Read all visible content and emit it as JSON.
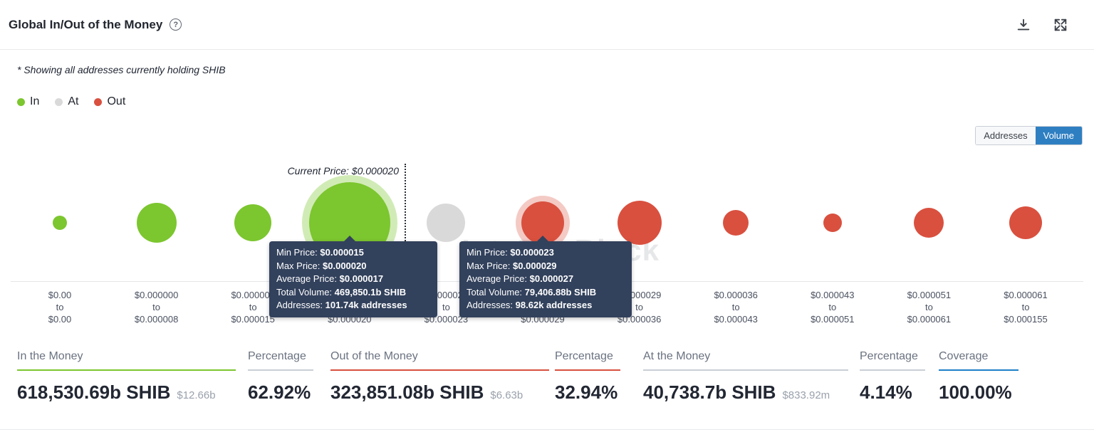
{
  "header": {
    "title": "Global In/Out of the Money",
    "help_icon": "?"
  },
  "note": "* Showing all addresses currently holding SHIB",
  "legend": {
    "items": [
      {
        "label": "In",
        "color": "#7cc62f"
      },
      {
        "label": "At",
        "color": "#d9d9d9"
      },
      {
        "label": "Out",
        "color": "#d9503f"
      }
    ]
  },
  "view_toggle": {
    "options": [
      {
        "label": "Addresses",
        "selected": false
      },
      {
        "label": "Volume",
        "selected": true
      }
    ],
    "selected_color": "#2e7fc2"
  },
  "current_price": {
    "label": "Current Price: $0.000020"
  },
  "watermark": "IntoTheBlock",
  "chart_data": {
    "type": "bubble",
    "current_price": "$0.000020",
    "separator_word": "to",
    "colors": {
      "in": "#7cc62f",
      "at": "#d9d9d9",
      "out": "#d9503f"
    },
    "buckets": [
      {
        "from": "$0.00",
        "to": "$0.00",
        "status": "in",
        "radius": 10
      },
      {
        "from": "$0.000000",
        "to": "$0.000008",
        "status": "in",
        "radius": 28
      },
      {
        "from": "$0.000008",
        "to": "$0.000015",
        "status": "in",
        "radius": 26
      },
      {
        "from": "$0.000015",
        "to": "$0.000020",
        "status": "in",
        "radius": 57,
        "highlighted": true
      },
      {
        "from": "$0.000020",
        "to": "$0.000023",
        "status": "at",
        "radius": 27
      },
      {
        "from": "$0.000023",
        "to": "$0.000029",
        "status": "out",
        "radius": 30,
        "highlighted": true
      },
      {
        "from": "$0.000029",
        "to": "$0.000036",
        "status": "out",
        "radius": 31
      },
      {
        "from": "$0.000036",
        "to": "$0.000043",
        "status": "out",
        "radius": 18
      },
      {
        "from": "$0.000043",
        "to": "$0.000051",
        "status": "out",
        "radius": 13
      },
      {
        "from": "$0.000051",
        "to": "$0.000061",
        "status": "out",
        "radius": 21
      },
      {
        "from": "$0.000061",
        "to": "$0.000155",
        "status": "out",
        "radius": 23
      }
    ]
  },
  "tooltips": [
    {
      "bucket_index": 3,
      "rows": [
        {
          "label": "Min Price:",
          "value": "$0.000015"
        },
        {
          "label": "Max Price:",
          "value": "$0.000020"
        },
        {
          "label": "Average Price:",
          "value": "$0.000017"
        },
        {
          "label": "Total Volume:",
          "value": "469,850.1b SHIB"
        },
        {
          "label": "Addresses:",
          "value": "101.74k addresses"
        }
      ]
    },
    {
      "bucket_index": 5,
      "rows": [
        {
          "label": "Min Price:",
          "value": "$0.000023"
        },
        {
          "label": "Max Price:",
          "value": "$0.000029"
        },
        {
          "label": "Average Price:",
          "value": "$0.000027"
        },
        {
          "label": "Total Volume:",
          "value": "79,406.88b SHIB"
        },
        {
          "label": "Addresses:",
          "value": "98.62k addresses"
        }
      ]
    }
  ],
  "stats": [
    {
      "label": "In the Money",
      "value": "618,530.69b SHIB",
      "secondary": "$12.66b",
      "underline": "#7cc62f"
    },
    {
      "label": "Percentage",
      "value": "62.92%",
      "underline": "#c9cfd6"
    },
    {
      "label": "Out of the Money",
      "value": "323,851.08b SHIB",
      "secondary": "$6.63b",
      "underline": "#d9503f"
    },
    {
      "label": "Percentage",
      "value": "32.94%",
      "underline": "#d9503f"
    },
    {
      "label": "At the Money",
      "value": "40,738.7b SHIB",
      "secondary": "$833.92m",
      "underline": "#c9cfd6"
    },
    {
      "label": "Percentage",
      "value": "4.14%",
      "underline": "#c9cfd6"
    },
    {
      "label": "Coverage",
      "value": "100.00%",
      "underline": "#1e80c7"
    }
  ]
}
